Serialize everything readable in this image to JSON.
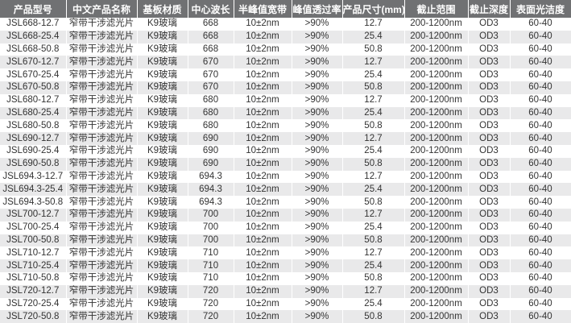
{
  "headers": [
    "产品型号",
    "中文产品名称",
    "基板材质",
    "中心波长",
    "半峰值宽带",
    "峰值透过率",
    "产品尺寸(mm)",
    "截止范围",
    "截止深度",
    "表面光洁度"
  ],
  "rows": [
    [
      "JSL668-12.7",
      "窄带干涉滤光片",
      "K9玻璃",
      "668",
      "10±2nm",
      ">90%",
      "12.7",
      "200-1200nm",
      "OD3",
      "60-40"
    ],
    [
      "JSL668-25.4",
      "窄带干涉滤光片",
      "K9玻璃",
      "668",
      "10±2nm",
      ">90%",
      "25.4",
      "200-1200nm",
      "OD3",
      "60-40"
    ],
    [
      "JSL668-50.8",
      "窄带干涉滤光片",
      "K9玻璃",
      "668",
      "10±2nm",
      ">90%",
      "50.8",
      "200-1200nm",
      "OD3",
      "60-40"
    ],
    [
      "JSL670-12.7",
      "窄带干涉滤光片",
      "K9玻璃",
      "670",
      "10±2nm",
      ">90%",
      "12.7",
      "200-1200nm",
      "OD3",
      "60-40"
    ],
    [
      "JSL670-25.4",
      "窄带干涉滤光片",
      "K9玻璃",
      "670",
      "10±2nm",
      ">90%",
      "25.4",
      "200-1200nm",
      "OD3",
      "60-40"
    ],
    [
      "JSL670-50.8",
      "窄带干涉滤光片",
      "K9玻璃",
      "670",
      "10±2nm",
      ">90%",
      "50.8",
      "200-1200nm",
      "OD3",
      "60-40"
    ],
    [
      "JSL680-12.7",
      "窄带干涉滤光片",
      "K9玻璃",
      "680",
      "10±2nm",
      ">90%",
      "12.7",
      "200-1200nm",
      "OD3",
      "60-40"
    ],
    [
      "JSL680-25.4",
      "窄带干涉滤光片",
      "K9玻璃",
      "680",
      "10±2nm",
      ">90%",
      "25.4",
      "200-1200nm",
      "OD3",
      "60-40"
    ],
    [
      "JSL680-50.8",
      "窄带干涉滤光片",
      "K9玻璃",
      "680",
      "10±2nm",
      ">90%",
      "50.8",
      "200-1200nm",
      "OD3",
      "60-40"
    ],
    [
      "JSL690-12.7",
      "窄带干涉滤光片",
      "K9玻璃",
      "690",
      "10±2nm",
      ">90%",
      "12.7",
      "200-1200nm",
      "OD3",
      "60-40"
    ],
    [
      "JSL690-25.4",
      "窄带干涉滤光片",
      "K9玻璃",
      "690",
      "10±2nm",
      ">90%",
      "25.4",
      "200-1200nm",
      "OD3",
      "60-40"
    ],
    [
      "JSL690-50.8",
      "窄带干涉滤光片",
      "K9玻璃",
      "690",
      "10±2nm",
      ">90%",
      "50.8",
      "200-1200nm",
      "OD3",
      "60-40"
    ],
    [
      "JSL694.3-12.7",
      "窄带干涉滤光片",
      "K9玻璃",
      "694.3",
      "10±2nm",
      ">90%",
      "12.7",
      "200-1200nm",
      "OD3",
      "60-40"
    ],
    [
      "JSL694.3-25.4",
      "窄带干涉滤光片",
      "K9玻璃",
      "694.3",
      "10±2nm",
      ">90%",
      "25.4",
      "200-1200nm",
      "OD3",
      "60-40"
    ],
    [
      "JSL694.3-50.8",
      "窄带干涉滤光片",
      "K9玻璃",
      "694.3",
      "10±2nm",
      ">90%",
      "50.8",
      "200-1200nm",
      "OD3",
      "60-40"
    ],
    [
      "JSL700-12.7",
      "窄带干涉滤光片",
      "K9玻璃",
      "700",
      "10±2nm",
      ">90%",
      "12.7",
      "200-1200nm",
      "OD3",
      "60-40"
    ],
    [
      "JSL700-25.4",
      "窄带干涉滤光片",
      "K9玻璃",
      "700",
      "10±2nm",
      ">90%",
      "25.4",
      "200-1200nm",
      "OD3",
      "60-40"
    ],
    [
      "JSL700-50.8",
      "窄带干涉滤光片",
      "K9玻璃",
      "700",
      "10±2nm",
      ">90%",
      "50.8",
      "200-1200nm",
      "OD3",
      "60-40"
    ],
    [
      "JSL710-12.7",
      "窄带干涉滤光片",
      "K9玻璃",
      "710",
      "10±2nm",
      ">90%",
      "12.7",
      "200-1200nm",
      "OD3",
      "60-40"
    ],
    [
      "JSL710-25.4",
      "窄带干涉滤光片",
      "K9玻璃",
      "710",
      "10±2nm",
      ">90%",
      "25.4",
      "200-1200nm",
      "OD3",
      "60-40"
    ],
    [
      "JSL710-50.8",
      "窄带干涉滤光片",
      "K9玻璃",
      "710",
      "10±2nm",
      ">90%",
      "50.8",
      "200-1200nm",
      "OD3",
      "60-40"
    ],
    [
      "JSL720-12.7",
      "窄带干涉滤光片",
      "K9玻璃",
      "720",
      "10±2nm",
      ">90%",
      "12.7",
      "200-1200nm",
      "OD3",
      "60-40"
    ],
    [
      "JSL720-25.4",
      "窄带干涉滤光片",
      "K9玻璃",
      "720",
      "10±2nm",
      ">90%",
      "25.4",
      "200-1200nm",
      "OD3",
      "60-40"
    ],
    [
      "JSL720-50.8",
      "窄带干涉滤光片",
      "K9玻璃",
      "720",
      "10±2nm",
      ">90%",
      "50.8",
      "200-1200nm",
      "OD3",
      "60-40"
    ]
  ],
  "colors": {
    "header_bg": "#707173",
    "alt_row": "#e9e9ea"
  }
}
